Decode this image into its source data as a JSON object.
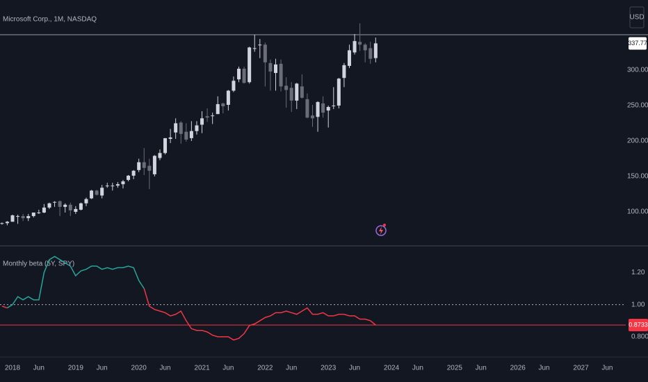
{
  "chart_data": [
    {
      "type": "candlestick",
      "title": "Microsoft Corp., 1M, NASDAQ",
      "currency": "USD",
      "x": [
        "2017-11",
        "2017-12",
        "2018-01",
        "2018-02",
        "2018-03",
        "2018-04",
        "2018-05",
        "2018-06",
        "2018-07",
        "2018-08",
        "2018-09",
        "2018-10",
        "2018-11",
        "2018-12",
        "2019-01",
        "2019-02",
        "2019-03",
        "2019-04",
        "2019-05",
        "2019-06",
        "2019-07",
        "2019-08",
        "2019-09",
        "2019-10",
        "2019-11",
        "2019-12",
        "2020-01",
        "2020-02",
        "2020-03",
        "2020-04",
        "2020-05",
        "2020-06",
        "2020-07",
        "2020-08",
        "2020-09",
        "2020-10",
        "2020-11",
        "2020-12",
        "2021-01",
        "2021-02",
        "2021-03",
        "2021-04",
        "2021-05",
        "2021-06",
        "2021-07",
        "2021-08",
        "2021-09",
        "2021-10",
        "2021-11",
        "2021-12",
        "2022-01",
        "2022-02",
        "2022-03",
        "2022-04",
        "2022-05",
        "2022-06",
        "2022-07",
        "2022-08",
        "2022-09",
        "2022-10",
        "2022-11",
        "2022-12",
        "2023-01",
        "2023-02",
        "2023-03",
        "2023-04",
        "2023-05",
        "2023-06",
        "2023-07",
        "2023-08",
        "2023-09",
        "2023-10"
      ],
      "open": [
        84,
        84,
        86,
        94,
        94,
        91,
        94,
        99,
        99,
        106,
        113,
        115,
        107,
        110,
        100,
        103,
        112,
        119,
        130,
        123,
        137,
        137,
        137,
        139,
        145,
        151,
        159,
        170,
        165,
        153,
        176,
        183,
        203,
        212,
        226,
        213,
        204,
        214,
        223,
        235,
        236,
        238,
        253,
        251,
        271,
        287,
        302,
        283,
        331,
        335,
        336,
        310,
        296,
        309,
        278,
        275,
        257,
        277,
        259,
        236,
        234,
        253,
        243,
        250,
        250,
        289,
        306,
        325,
        340,
        336,
        331,
        317
      ],
      "high": [
        85,
        87,
        96,
        96,
        97,
        97,
        99,
        103,
        111,
        113,
        115,
        116,
        112,
        113,
        108,
        113,
        120,
        131,
        131,
        138,
        141,
        141,
        142,
        145,
        152,
        159,
        175,
        190,
        175,
        180,
        188,
        204,
        217,
        232,
        228,
        225,
        228,
        228,
        242,
        246,
        240,
        263,
        254,
        272,
        291,
        305,
        305,
        333,
        350,
        344,
        339,
        315,
        316,
        315,
        290,
        283,
        282,
        294,
        267,
        251,
        256,
        263,
        250,
        276,
        289,
        310,
        336,
        351,
        366,
        338,
        340,
        346
      ],
      "low": [
        82,
        81,
        86,
        83,
        87,
        87,
        92,
        97,
        98,
        104,
        107,
        94,
        99,
        94,
        97,
        102,
        108,
        118,
        123,
        119,
        134,
        130,
        134,
        133,
        143,
        146,
        156,
        152,
        132,
        150,
        173,
        181,
        197,
        203,
        196,
        199,
        200,
        209,
        211,
        227,
        224,
        238,
        239,
        243,
        269,
        283,
        281,
        281,
        326,
        317,
        277,
        271,
        271,
        270,
        247,
        241,
        245,
        260,
        232,
        220,
        213,
        233,
        219,
        245,
        246,
        276,
        303,
        322,
        327,
        311,
        309,
        311
      ],
      "close": [
        84,
        86,
        95,
        94,
        91,
        94,
        99,
        99,
        106,
        112,
        114,
        107,
        110,
        102,
        104,
        112,
        118,
        130,
        124,
        134,
        137,
        137,
        139,
        143,
        151,
        158,
        170,
        162,
        158,
        179,
        183,
        204,
        205,
        225,
        210,
        202,
        214,
        222,
        232,
        233,
        236,
        252,
        249,
        271,
        285,
        302,
        282,
        332,
        331,
        336,
        311,
        298,
        308,
        277,
        272,
        257,
        281,
        261,
        233,
        232,
        255,
        240,
        248,
        250,
        288,
        307,
        328,
        341,
        336,
        328,
        316,
        337.77
      ],
      "ylim": [
        53.9,
        399
      ],
      "price_line": 350,
      "yticks": [
        {
          "value": 100,
          "label": "100.00"
        },
        {
          "value": 150,
          "label": "150.00"
        },
        {
          "value": 200,
          "label": "200.00"
        },
        {
          "value": 250,
          "label": "250.00"
        },
        {
          "value": 300,
          "label": "300.00"
        }
      ],
      "up_color": "#d1d4dc",
      "down_color": "#6a6d78"
    },
    {
      "type": "line",
      "title": "Monthly beta (5Y, SPY)",
      "x": [
        "2017-11",
        "2017-12",
        "2018-01",
        "2018-02",
        "2018-03",
        "2018-04",
        "2018-05",
        "2018-06",
        "2018-07",
        "2018-08",
        "2018-09",
        "2018-10",
        "2018-11",
        "2018-12",
        "2019-01",
        "2019-02",
        "2019-03",
        "2019-04",
        "2019-05",
        "2019-06",
        "2019-07",
        "2019-08",
        "2019-09",
        "2019-10",
        "2019-11",
        "2019-12",
        "2020-01",
        "2020-02",
        "2020-03",
        "2020-04",
        "2020-05",
        "2020-06",
        "2020-07",
        "2020-08",
        "2020-09",
        "2020-10",
        "2020-11",
        "2020-12",
        "2021-01",
        "2021-02",
        "2021-03",
        "2021-04",
        "2021-05",
        "2021-06",
        "2021-07",
        "2021-08",
        "2021-09",
        "2021-10",
        "2021-11",
        "2021-12",
        "2022-01",
        "2022-02",
        "2022-03",
        "2022-04",
        "2022-05",
        "2022-06",
        "2022-07",
        "2022-08",
        "2022-09",
        "2022-10",
        "2022-11",
        "2022-12",
        "2023-01",
        "2023-02",
        "2023-03",
        "2023-04",
        "2023-05",
        "2023-06",
        "2023-07",
        "2023-08",
        "2023-09",
        "2023-10"
      ],
      "values": [
        0.99,
        0.98,
        1.0,
        1.05,
        1.03,
        1.05,
        1.03,
        1.03,
        1.2,
        1.28,
        1.3,
        1.28,
        1.26,
        1.24,
        1.18,
        1.21,
        1.22,
        1.24,
        1.24,
        1.22,
        1.23,
        1.22,
        1.23,
        1.23,
        1.24,
        1.23,
        1.15,
        1.1,
        0.99,
        0.97,
        0.96,
        0.95,
        0.93,
        0.94,
        0.96,
        0.9,
        0.85,
        0.84,
        0.84,
        0.83,
        0.81,
        0.8,
        0.8,
        0.8,
        0.78,
        0.79,
        0.82,
        0.87,
        0.88,
        0.9,
        0.92,
        0.93,
        0.95,
        0.95,
        0.96,
        0.95,
        0.94,
        0.96,
        0.98,
        0.94,
        0.94,
        0.95,
        0.93,
        0.93,
        0.94,
        0.94,
        0.93,
        0.93,
        0.91,
        0.91,
        0.9,
        0.8733
      ],
      "ylim": [
        0.683,
        1.357
      ],
      "reference": 1,
      "yticks": [
        {
          "value": 0.8,
          "label": "0.8000"
        },
        {
          "value": 1,
          "label": "1.00"
        },
        {
          "value": 1.2,
          "label": "1.20"
        }
      ],
      "color_above": "#26a69a",
      "color_below": "#f23645",
      "xticks": [
        {
          "value": "2018-01",
          "label": "2018"
        },
        {
          "value": "2018-06",
          "label": "Jun"
        },
        {
          "value": "2019-01",
          "label": "2019"
        },
        {
          "value": "2019-06",
          "label": "Jun"
        },
        {
          "value": "2020-01",
          "label": "2020"
        },
        {
          "value": "2020-06",
          "label": "Jun"
        },
        {
          "value": "2021-01",
          "label": "2021"
        },
        {
          "value": "2021-06",
          "label": "Jun"
        },
        {
          "value": "2022-01",
          "label": "2022"
        },
        {
          "value": "2022-06",
          "label": "Jun"
        },
        {
          "value": "2023-01",
          "label": "2023"
        },
        {
          "value": "2023-06",
          "label": "Jun"
        },
        {
          "value": "2024-01",
          "label": "2024"
        },
        {
          "value": "2024-06",
          "label": "Jun"
        },
        {
          "value": "2025-01",
          "label": "2025"
        },
        {
          "value": "2025-06",
          "label": "Jun"
        },
        {
          "value": "2026-01",
          "label": "2026"
        },
        {
          "value": "2026-06",
          "label": "Jun"
        },
        {
          "value": "2027-01",
          "label": "2027"
        },
        {
          "value": "2027-06",
          "label": "Jun"
        }
      ]
    }
  ]
}
